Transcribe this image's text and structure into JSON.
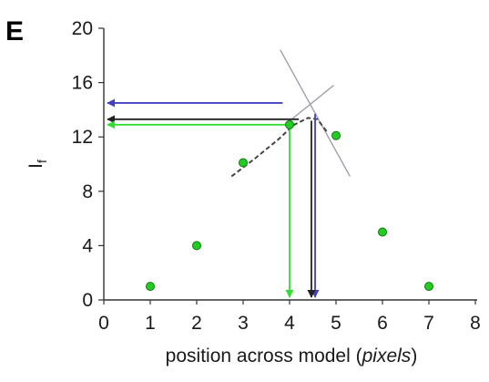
{
  "chart_data": {
    "type": "scatter",
    "panel_label": "E",
    "xlabel_prefix": "position across model (",
    "xlabel_italic": "pixels",
    "xlabel_suffix": ")",
    "ylabel_main": "I",
    "ylabel_sub": "f",
    "xlim": [
      0,
      8
    ],
    "ylim": [
      0,
      20
    ],
    "xticks": [
      0,
      1,
      2,
      3,
      4,
      5,
      6,
      7,
      8
    ],
    "yticks": [
      0,
      4,
      8,
      12,
      16,
      20
    ],
    "points": [
      {
        "x": 1,
        "y": 1.0
      },
      {
        "x": 2,
        "y": 4.0
      },
      {
        "x": 3,
        "y": 10.1
      },
      {
        "x": 4,
        "y": 12.9
      },
      {
        "x": 5,
        "y": 12.1
      },
      {
        "x": 6,
        "y": 5.0
      },
      {
        "x": 7,
        "y": 1.0
      }
    ],
    "point_color": "#22cc22",
    "colors": {
      "blue": "#4040c0",
      "black": "#222222",
      "green": "#33dd33",
      "gray": "#9a9aa8"
    },
    "annotations": {
      "fit_curve": {
        "x": [
          2.75,
          3.25,
          3.75,
          4.1,
          4.4,
          4.6,
          4.8
        ],
        "y": [
          9.1,
          10.4,
          11.8,
          12.9,
          13.4,
          13.3,
          12.4
        ]
      },
      "tangent_lines": [
        {
          "x": [
            3.8,
            5.3
          ],
          "y": [
            18.4,
            9.1
          ]
        },
        {
          "x": [
            3.9,
            4.95
          ],
          "y": [
            12.9,
            15.8
          ]
        }
      ],
      "peak_arrows": [
        {
          "color": "blue",
          "y": 14.5,
          "x_from": 3.85,
          "x_to": 0.08,
          "drop_x": 4.55,
          "drop_from": 13.7,
          "drop_to": 0.2
        },
        {
          "color": "black",
          "y": 13.3,
          "x_from": 4.2,
          "x_to": 0.08,
          "drop_x": 4.47,
          "drop_from": 13.2,
          "drop_to": 0.2
        },
        {
          "color": "green",
          "y": 12.9,
          "x_from": 3.95,
          "x_to": 0.08,
          "drop_x": 4.0,
          "drop_from": 12.8,
          "drop_to": 0.2
        }
      ]
    }
  }
}
